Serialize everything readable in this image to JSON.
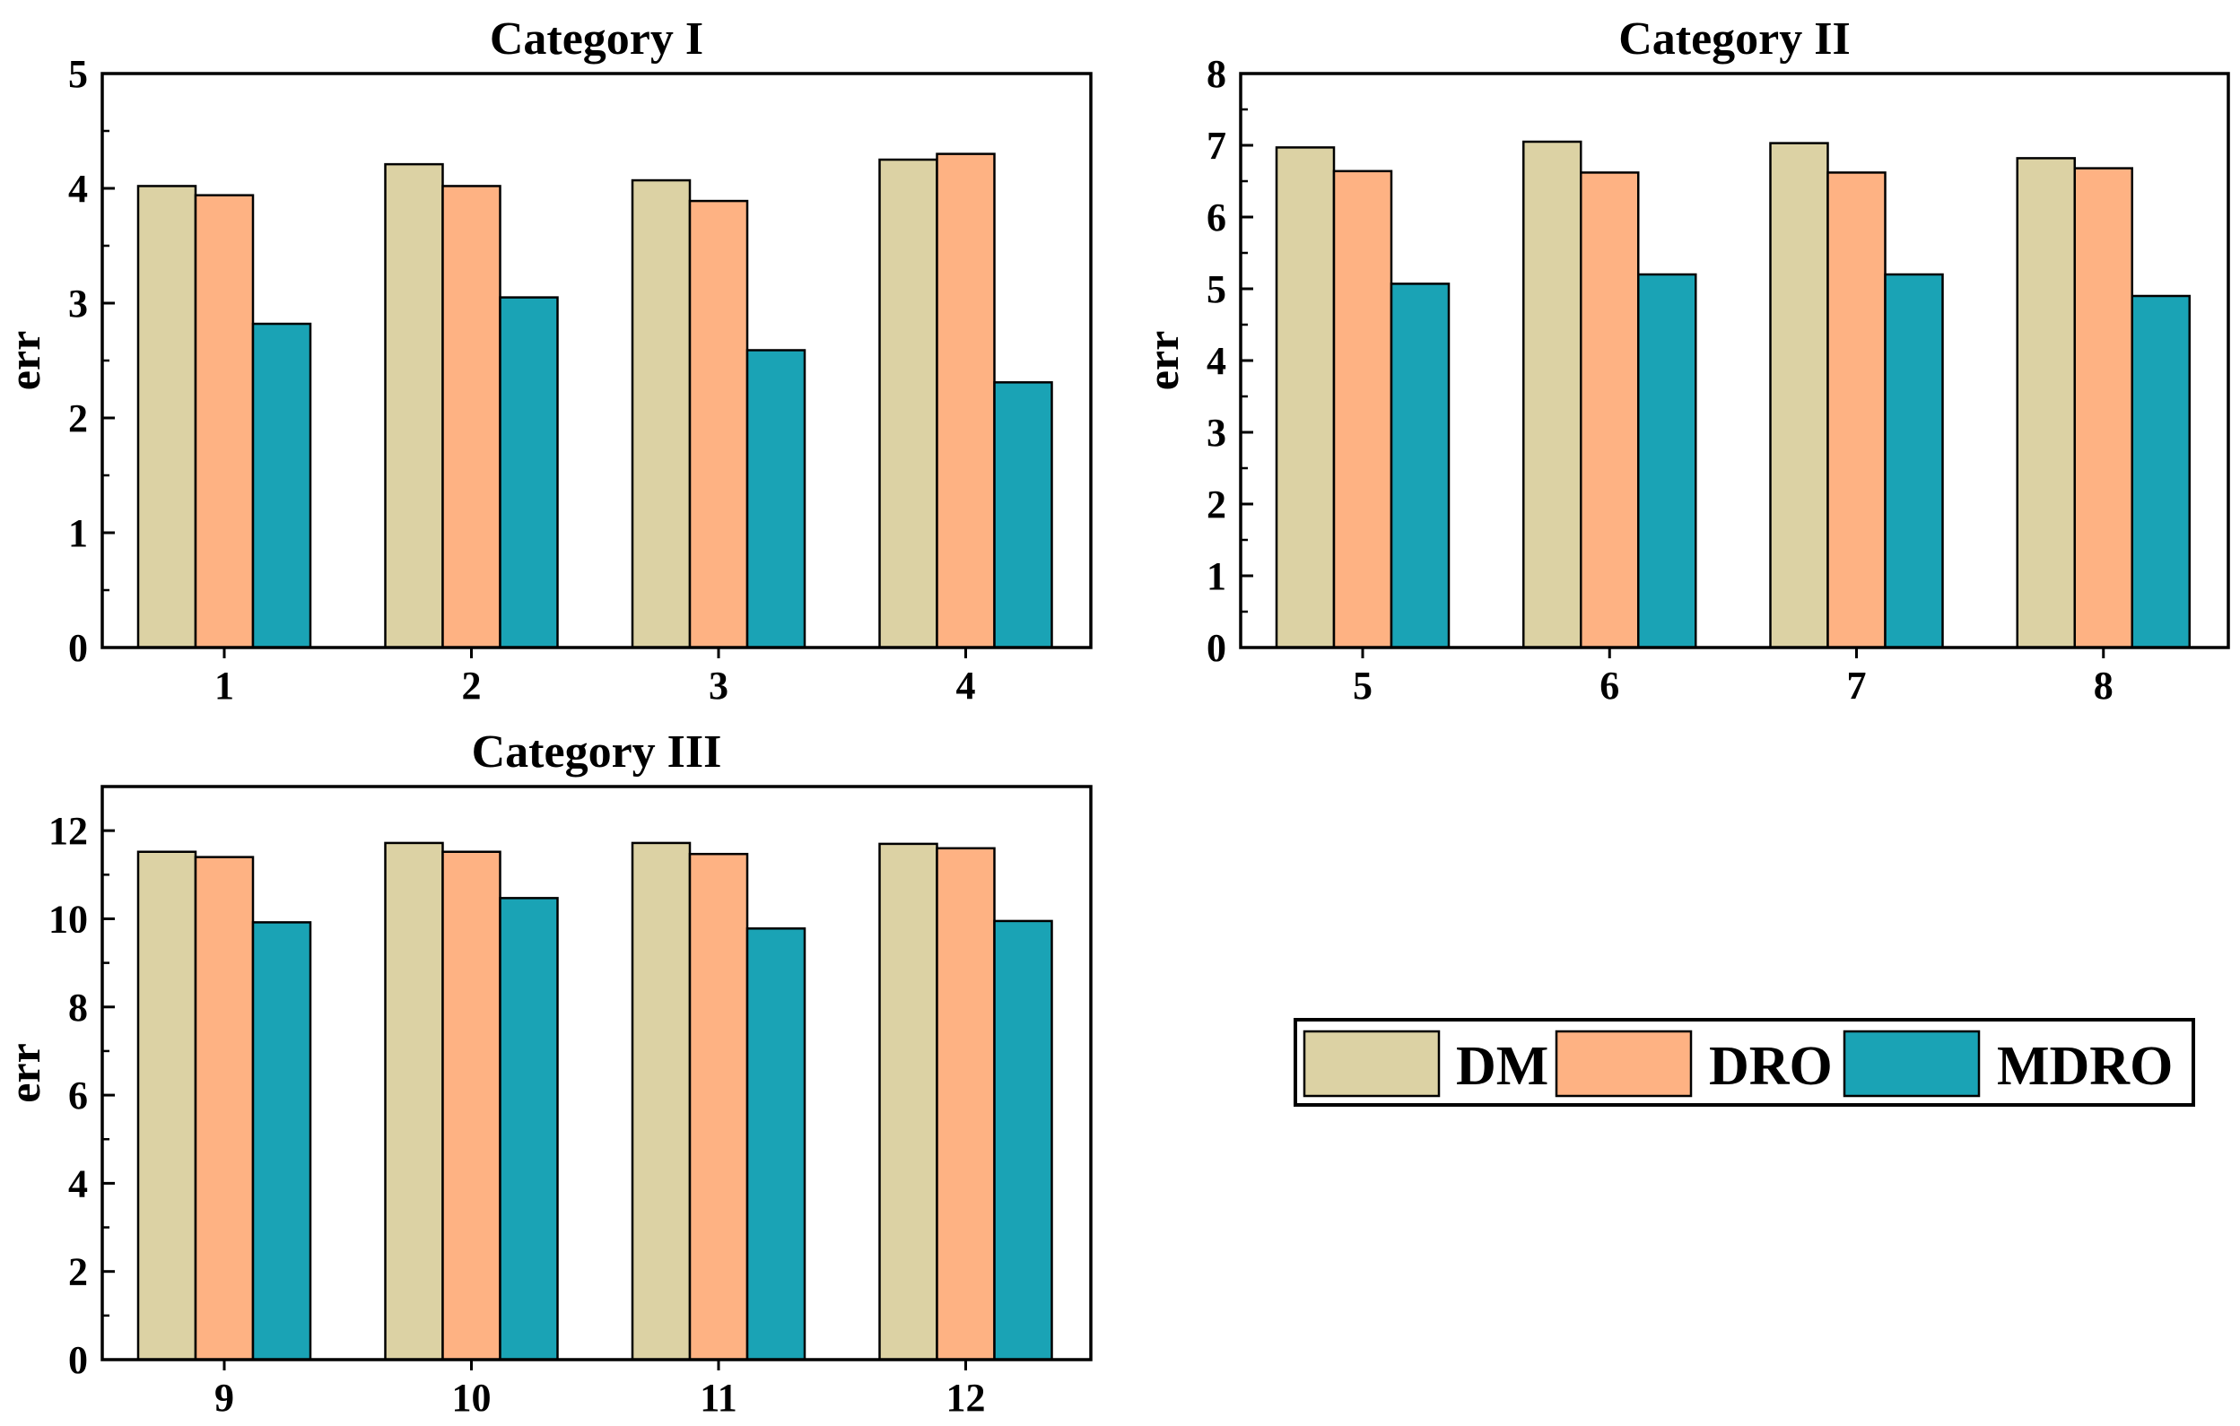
{
  "colors": {
    "DM": "#dcd2a4",
    "DRO": "#feb283",
    "MDRO": "#1aa3b5"
  },
  "legend": {
    "items": [
      "DM",
      "DRO",
      "MDRO"
    ]
  },
  "chart_data": [
    {
      "type": "bar",
      "title": "Category I",
      "xlabel": "",
      "ylabel": "err",
      "categories": [
        "1",
        "2",
        "3",
        "4"
      ],
      "ylim": [
        0,
        5
      ],
      "yticks": [
        "0",
        "1",
        "2",
        "3",
        "4",
        "5"
      ],
      "series": [
        {
          "name": "DM",
          "values": [
            4.02,
            4.21,
            4.07,
            4.25
          ]
        },
        {
          "name": "DRO",
          "values": [
            3.94,
            4.02,
            3.89,
            4.3
          ]
        },
        {
          "name": "MDRO",
          "values": [
            2.82,
            3.05,
            2.59,
            2.31
          ]
        }
      ]
    },
    {
      "type": "bar",
      "title": "Category II",
      "xlabel": "",
      "ylabel": "err",
      "categories": [
        "5",
        "6",
        "7",
        "8"
      ],
      "ylim": [
        0,
        8
      ],
      "yticks": [
        "0",
        "1",
        "2",
        "3",
        "4",
        "5",
        "6",
        "7",
        "8"
      ],
      "series": [
        {
          "name": "DM",
          "values": [
            6.97,
            7.05,
            7.03,
            6.82
          ]
        },
        {
          "name": "DRO",
          "values": [
            6.64,
            6.62,
            6.62,
            6.68
          ]
        },
        {
          "name": "MDRO",
          "values": [
            5.07,
            5.2,
            5.2,
            4.9
          ]
        }
      ]
    },
    {
      "type": "bar",
      "title": "Category III",
      "xlabel": "",
      "ylabel": "err",
      "categories": [
        "9",
        "10",
        "11",
        "12"
      ],
      "ylim": [
        0,
        13
      ],
      "yticks": [
        "0",
        "2",
        "4",
        "6",
        "8",
        "10",
        "12"
      ],
      "series": [
        {
          "name": "DM",
          "values": [
            11.52,
            11.72,
            11.72,
            11.7
          ]
        },
        {
          "name": "DRO",
          "values": [
            11.4,
            11.52,
            11.47,
            11.6
          ]
        },
        {
          "name": "MDRO",
          "values": [
            9.92,
            10.47,
            9.78,
            9.95
          ]
        }
      ]
    }
  ]
}
